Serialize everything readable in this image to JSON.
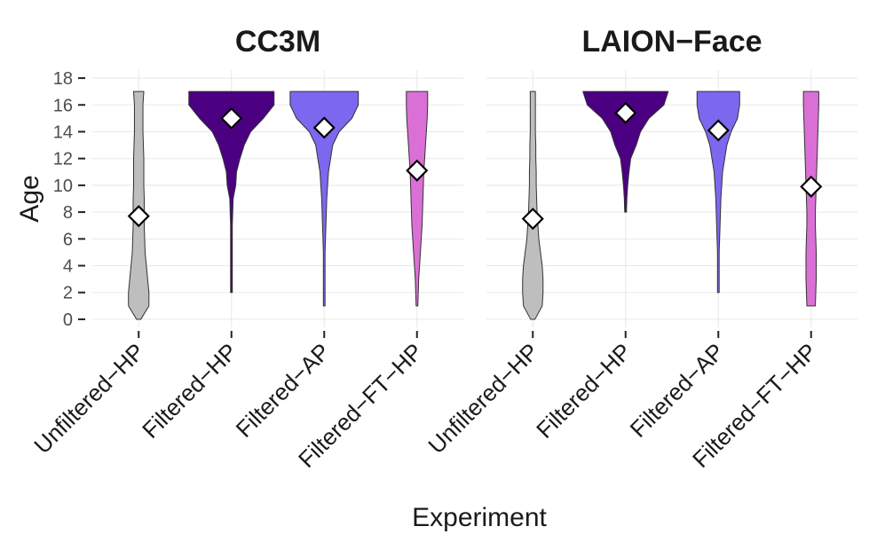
{
  "chart_data": [
    {
      "type": "violin",
      "title": "CC3M",
      "ylabel": "Age",
      "xlabel": "Experiment",
      "ylim": [
        -0.6,
        18.6
      ],
      "yticks": [
        0,
        2,
        4,
        6,
        8,
        10,
        12,
        14,
        16,
        18
      ],
      "grid": true,
      "categories": [
        "Unfiltered−HP",
        "Filtered−HP",
        "Filtered−AP",
        "Filtered−FT−HP"
      ],
      "density_ages": [
        0,
        1,
        2,
        3,
        4,
        5,
        6,
        7,
        8,
        9,
        10,
        11,
        12,
        13,
        14,
        15,
        16,
        17
      ],
      "violins": [
        {
          "color": "#bebebe",
          "mean": 7.7,
          "density": [
            0.05,
            0.24,
            0.24,
            0.21,
            0.18,
            0.15,
            0.14,
            0.13,
            0.13,
            0.13,
            0.12,
            0.12,
            0.12,
            0.11,
            0.1,
            0.1,
            0.1,
            0.12
          ]
        },
        {
          "color": "#4b0082",
          "mean": 15.0,
          "density": [
            null,
            null,
            0.02,
            0.02,
            0.02,
            0.02,
            0.02,
            0.02,
            0.03,
            0.04,
            0.1,
            0.12,
            0.2,
            0.3,
            0.45,
            0.75,
            1.0,
            1.0
          ]
        },
        {
          "color": "#7b68ee",
          "mean": 14.3,
          "density": [
            null,
            0.02,
            0.02,
            0.02,
            0.02,
            0.02,
            0.03,
            0.04,
            0.05,
            0.06,
            0.08,
            0.1,
            0.15,
            0.2,
            0.35,
            0.65,
            0.8,
            0.8
          ]
        },
        {
          "color": "#da70d6",
          "mean": 11.1,
          "density": [
            null,
            0.02,
            0.03,
            0.04,
            0.06,
            0.08,
            0.1,
            0.12,
            0.13,
            0.14,
            0.15,
            0.16,
            0.18,
            0.2,
            0.22,
            0.24,
            0.25,
            0.25
          ]
        }
      ]
    },
    {
      "type": "violin",
      "title": "LAION−Face",
      "ylim": [
        -0.6,
        18.6
      ],
      "yticks": [
        0,
        2,
        4,
        6,
        8,
        10,
        12,
        14,
        16,
        18
      ],
      "grid": true,
      "categories": [
        "Unfiltered−HP",
        "Filtered−HP",
        "Filtered−AP",
        "Filtered−FT−HP"
      ],
      "density_ages": [
        0,
        1,
        2,
        3,
        4,
        5,
        6,
        7,
        8,
        9,
        10,
        11,
        12,
        13,
        14,
        15,
        16,
        17
      ],
      "violins": [
        {
          "color": "#bebebe",
          "mean": 7.5,
          "density": [
            0.05,
            0.22,
            0.24,
            0.24,
            0.22,
            0.18,
            0.14,
            0.12,
            0.1,
            0.09,
            0.08,
            0.08,
            0.07,
            0.07,
            0.06,
            0.06,
            0.06,
            0.06
          ]
        },
        {
          "color": "#4b0082",
          "mean": 15.4,
          "density": [
            null,
            null,
            null,
            null,
            null,
            null,
            null,
            null,
            0.02,
            0.03,
            0.05,
            0.08,
            0.12,
            0.25,
            0.35,
            0.55,
            0.9,
            1.0
          ]
        },
        {
          "color": "#7b68ee",
          "mean": 14.1,
          "density": [
            null,
            null,
            0.02,
            0.02,
            0.02,
            0.02,
            0.03,
            0.04,
            0.05,
            0.06,
            0.08,
            0.1,
            0.15,
            0.2,
            0.3,
            0.45,
            0.5,
            0.5
          ]
        },
        {
          "color": "#da70d6",
          "mean": 9.9,
          "density": [
            null,
            0.1,
            0.11,
            0.12,
            0.12,
            0.12,
            0.11,
            0.1,
            0.1,
            0.11,
            0.12,
            0.13,
            0.14,
            0.15,
            0.16,
            0.17,
            0.18,
            0.18
          ]
        }
      ]
    }
  ]
}
